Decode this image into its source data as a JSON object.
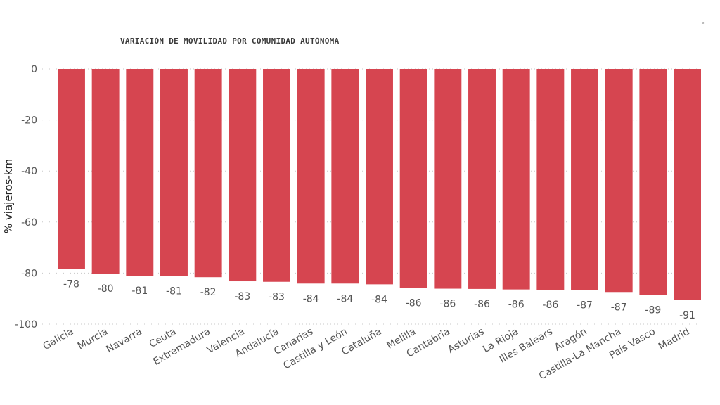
{
  "chart_data": {
    "type": "bar",
    "title": "VARIACIÓN DE MOVILIDAD POR COMUNIDAD AUTÓNOMA",
    "xlabel": "",
    "ylabel": "% viajeros-km",
    "ylim": [
      -100,
      0
    ],
    "yticks": [
      0,
      -20,
      -40,
      -60,
      -80,
      -100
    ],
    "grid": true,
    "categories": [
      "Galicia",
      "Murcia",
      "Navarra",
      "Ceuta",
      "Extremadura",
      "Valencia",
      "Andalucía",
      "Canarias",
      "Castilla y León",
      "Cataluña",
      "Melilla",
      "Cantabria",
      "Asturias",
      "La Rioja",
      "Illes Balears",
      "Aragón",
      "Castilla-La Mancha",
      "País Vasco",
      "Madrid"
    ],
    "values": [
      -78.4,
      -80.2,
      -81.0,
      -81.1,
      -81.6,
      -83.2,
      -83.4,
      -84.1,
      -84.1,
      -84.4,
      -85.8,
      -86.1,
      -86.2,
      -86.4,
      -86.5,
      -86.6,
      -87.4,
      -88.5,
      -90.6
    ],
    "value_labels": [
      "-78",
      "-80",
      "-81",
      "-81",
      "-82",
      "-83",
      "-83",
      "-84",
      "-84",
      "-84",
      "-86",
      "-86",
      "-86",
      "-86",
      "-86",
      "-87",
      "-87",
      "-89",
      "-91"
    ],
    "bar_color": "#d64550"
  },
  "corner_mark": "ᵉ"
}
